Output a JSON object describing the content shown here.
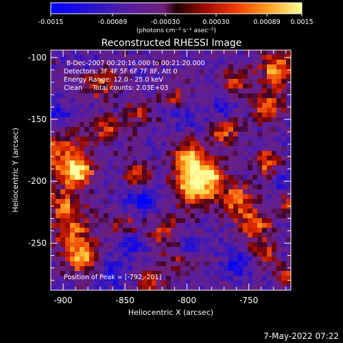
{
  "colorbar": {
    "ticks": [
      "-0.0015",
      "-0.00089",
      "-0.00030",
      "0.00030",
      "0.00089",
      "0.0015"
    ],
    "units_label": "(photons cm⁻² s⁻¹ asec⁻²)"
  },
  "chart_data": {
    "type": "heatmap",
    "title": "Reconstructed RHESSI Image",
    "xlabel": "Heliocentric X (arcsec)",
    "ylabel": "Heliocentric Y (arcsec)",
    "xlim": [
      -910,
      -716
    ],
    "ylim": [
      -288,
      -94
    ],
    "x_ticks": [
      "-900",
      "-850",
      "-800",
      "-750"
    ],
    "y_ticks": [
      "-100",
      "-150",
      "-200",
      "-250"
    ],
    "colorbar_range": [
      -0.0015,
      0.0015
    ],
    "annotations": [
      "8-Dec-2007 00:20:16.000 to 00:21:20.000",
      "Detectors: 3F 4F 5F 6F 7F 8F, Att 0",
      "Energy Range: 12.0 - 25.0 keV",
      "Clean     Total counts: 2.03E+03"
    ],
    "peak_label": "Position of Peak = [-792,-201]",
    "peak": {
      "x": -792,
      "y": -201
    },
    "hot_spots": [
      {
        "x": -792,
        "y": -201,
        "r": 12,
        "w": 1.0
      },
      {
        "x": -798,
        "y": -180,
        "r": 8,
        "w": 0.7
      },
      {
        "x": -888,
        "y": -193,
        "r": 8,
        "w": 0.75
      },
      {
        "x": -902,
        "y": -180,
        "r": 14,
        "w": 0.55
      },
      {
        "x": -885,
        "y": -262,
        "r": 8,
        "w": 0.75
      },
      {
        "x": -890,
        "y": -240,
        "r": 12,
        "w": 0.5
      },
      {
        "x": -840,
        "y": -195,
        "r": 7,
        "w": 0.6
      },
      {
        "x": -760,
        "y": -215,
        "r": 9,
        "w": 0.55
      },
      {
        "x": -745,
        "y": -235,
        "r": 9,
        "w": 0.55
      },
      {
        "x": -735,
        "y": -185,
        "r": 8,
        "w": 0.5
      },
      {
        "x": -728,
        "y": -110,
        "r": 10,
        "w": 0.65
      },
      {
        "x": -735,
        "y": -140,
        "r": 9,
        "w": 0.5
      },
      {
        "x": -770,
        "y": -160,
        "r": 8,
        "w": 0.5
      },
      {
        "x": -760,
        "y": -120,
        "r": 8,
        "w": 0.45
      },
      {
        "x": -820,
        "y": -240,
        "r": 10,
        "w": 0.35
      },
      {
        "x": -850,
        "y": -235,
        "r": 8,
        "w": 0.4
      },
      {
        "x": -865,
        "y": -158,
        "r": 8,
        "w": 0.4
      },
      {
        "x": -870,
        "y": -120,
        "r": 10,
        "w": 0.4
      },
      {
        "x": -840,
        "y": -145,
        "r": 7,
        "w": 0.35
      },
      {
        "x": -900,
        "y": -218,
        "r": 8,
        "w": 0.5
      },
      {
        "x": -738,
        "y": -258,
        "r": 7,
        "w": 0.45
      },
      {
        "x": -720,
        "y": -275,
        "r": 6,
        "w": 0.4
      },
      {
        "x": -805,
        "y": -265,
        "r": 8,
        "w": 0.3
      },
      {
        "x": -810,
        "y": -130,
        "r": 7,
        "w": 0.35
      },
      {
        "x": -778,
        "y": -195,
        "r": 6,
        "w": 0.45
      },
      {
        "x": -715,
        "y": -220,
        "r": 8,
        "w": 0.45
      },
      {
        "x": -830,
        "y": -280,
        "r": 8,
        "w": 0.35
      }
    ],
    "cold_spots": [
      {
        "x": -835,
        "y": -215,
        "r": 10,
        "w": 0.7
      },
      {
        "x": -845,
        "y": -250,
        "r": 8,
        "w": 0.6
      },
      {
        "x": -905,
        "y": -145,
        "r": 7,
        "w": 0.6
      },
      {
        "x": -760,
        "y": -265,
        "r": 8,
        "w": 0.65
      },
      {
        "x": -800,
        "y": -150,
        "r": 7,
        "w": 0.4
      },
      {
        "x": -770,
        "y": -140,
        "r": 7,
        "w": 0.5
      },
      {
        "x": -725,
        "y": -200,
        "r": 6,
        "w": 0.5
      },
      {
        "x": -860,
        "y": -275,
        "r": 8,
        "w": 0.55
      },
      {
        "x": -880,
        "y": -105,
        "r": 6,
        "w": 0.4
      },
      {
        "x": -800,
        "y": -255,
        "r": 6,
        "w": 0.5
      }
    ]
  },
  "footer": {
    "date": "7-May-2022 07:22"
  }
}
